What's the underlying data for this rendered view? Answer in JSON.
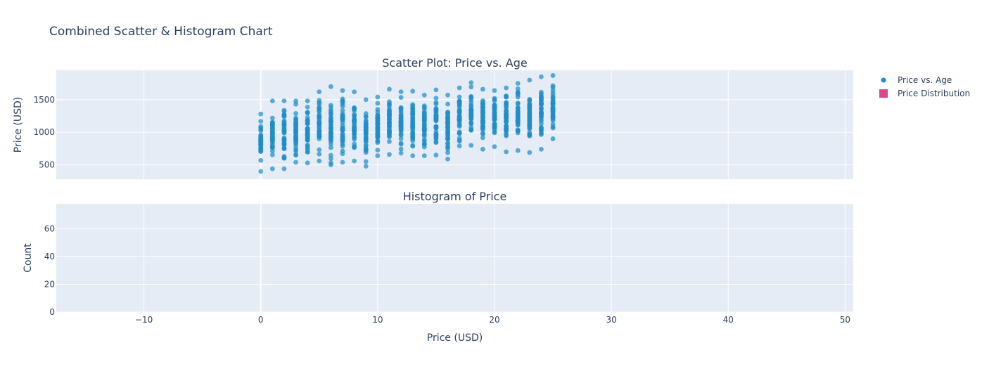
{
  "chart_data": {
    "type": "scatter+histogram",
    "title": "Combined Scatter & Histogram Chart",
    "colors": {
      "scatter": "#1f8dc9",
      "histogram": "#d9478c",
      "plot_bg": "#e5ecf6",
      "grid": "#ffffff",
      "text": "#2a3f5f"
    },
    "legend": {
      "position": "top-right",
      "items": [
        {
          "name": "Price vs. Age",
          "symbol": "circle"
        },
        {
          "name": "Price Distribution",
          "symbol": "square"
        }
      ]
    },
    "x_axis": {
      "label": "Price (USD)",
      "range": [
        -17.5,
        50.7
      ],
      "ticks": [
        -10,
        0,
        10,
        20,
        30,
        40,
        50
      ],
      "tick_labels": [
        "−10",
        "0",
        "10",
        "20",
        "30",
        "40",
        "50"
      ]
    },
    "subplots": [
      {
        "id": "scatter",
        "title": "Scatter Plot: Price vs. Age",
        "ylabel": "Price (USD)",
        "ylim": [
          280,
          1950
        ],
        "yticks": [
          500,
          1000,
          1500
        ],
        "series": {
          "name": "Price vs. Age",
          "x_min": 0,
          "x_max": 25,
          "x_step": 1,
          "y_min": [
            400,
            440,
            440,
            540,
            530,
            560,
            500,
            540,
            560,
            480,
            640,
            660,
            680,
            640,
            640,
            650,
            590,
            790,
            800,
            740,
            780,
            700,
            720,
            690,
            740,
            900
          ],
          "y_max": [
            1280,
            1480,
            1480,
            1480,
            1480,
            1620,
            1700,
            1640,
            1620,
            1500,
            1540,
            1660,
            1620,
            1630,
            1570,
            1650,
            1570,
            1680,
            1760,
            1660,
            1640,
            1680,
            1750,
            1800,
            1850,
            1870
          ],
          "points_per_x": 42
        }
      },
      {
        "id": "histogram",
        "title": "Histogram of Price",
        "ylabel": "Count",
        "ylim": [
          0,
          78
        ],
        "yticks": [
          0,
          20,
          40,
          60
        ],
        "series": {
          "name": "Price Distribution",
          "values": []
        }
      }
    ]
  }
}
